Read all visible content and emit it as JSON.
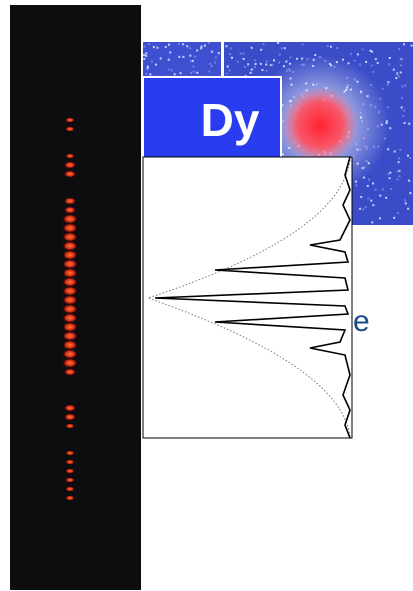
{
  "overlay": {
    "label": "Dy"
  },
  "text": {
    "fragment": "e"
  }
}
